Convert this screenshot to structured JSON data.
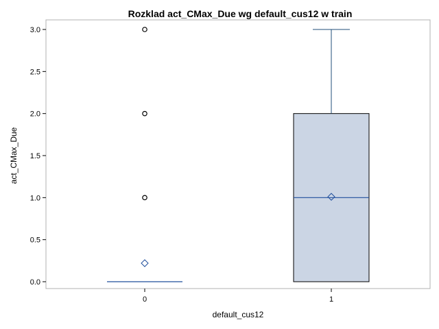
{
  "chart_data": {
    "type": "box",
    "title": "Rozklad act_CMax_Due wg default_cus12 w train",
    "xlabel": "default_cus12",
    "ylabel": "act_CMax_Due",
    "categories": [
      "0",
      "1"
    ],
    "ylim": [
      0,
      3
    ],
    "yticks": [
      0.0,
      0.5,
      1.0,
      1.5,
      2.0,
      2.5,
      3.0
    ],
    "ytick_labels": [
      "0.0",
      "0.5",
      "1.0",
      "1.5",
      "2.0",
      "2.5",
      "3.0"
    ],
    "grid": false,
    "boxes": [
      {
        "category": "0",
        "min": 0,
        "q1": 0,
        "median": 0,
        "q3": 0,
        "max": 0,
        "mean": 0.22,
        "outliers": [
          1,
          2,
          3
        ]
      },
      {
        "category": "1",
        "min": 0,
        "q1": 0,
        "median": 1,
        "q3": 2,
        "max": 3,
        "mean": 1.01,
        "outliers": []
      }
    ],
    "colors": {
      "box_fill": "#cbd5e4",
      "box_edge": "#000000",
      "median": "#1f4e9c",
      "whisker": "#1f4e79",
      "mean_marker": "#1f4e9c",
      "outlier": "#000000",
      "frame": "#b0b0b0"
    }
  }
}
